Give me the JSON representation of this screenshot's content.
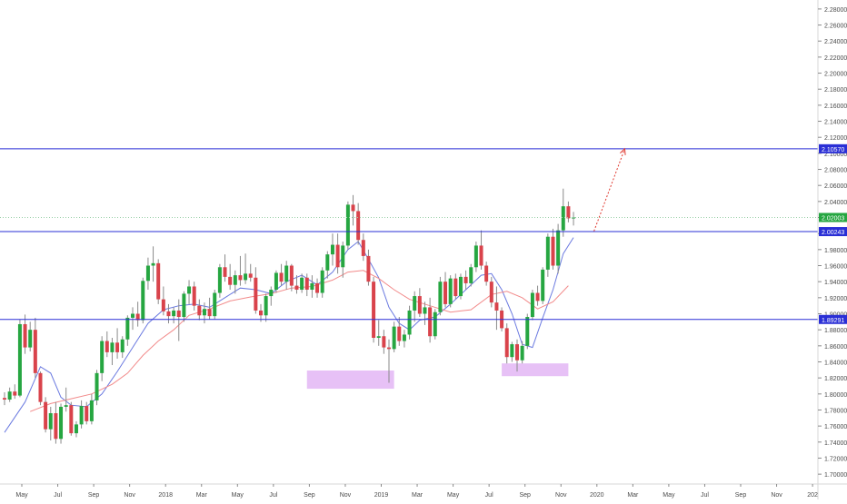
{
  "chart_data": {
    "type": "candlestick",
    "title": "",
    "xlabel": "",
    "ylabel": "",
    "ylim": [
      1.6877,
      2.2912
    ],
    "y_ticks": [
      "1.70000",
      "1.72000",
      "1.74000",
      "1.76000",
      "1.78000",
      "1.80000",
      "1.82000",
      "1.84000",
      "1.86000",
      "1.88000",
      "1.90000",
      "1.92000",
      "1.94000",
      "1.96000",
      "1.98000",
      "2.00000",
      "2.02000",
      "2.04000",
      "2.06000",
      "2.08000",
      "2.10000",
      "2.12000",
      "2.14000",
      "2.16000",
      "2.18000",
      "2.20000",
      "2.22000",
      "2.24000",
      "2.26000",
      "2.28000"
    ],
    "x_ticks": [
      "May",
      "Jul",
      "Sep",
      "Nov",
      "2018",
      "Mar",
      "May",
      "Jul",
      "Sep",
      "Nov",
      "2019",
      "Mar",
      "May",
      "Jul",
      "Sep",
      "Nov",
      "2020",
      "Mar",
      "May",
      "Jul",
      "Sep",
      "Nov",
      "202"
    ],
    "grid": false,
    "colors": {
      "up": "#26a641",
      "down": "#d9434b",
      "ma_fast": "#6b7ae0",
      "ma_slow": "#f28a8a",
      "level_line": "#2a2fd6",
      "price_tag": "#26a641",
      "zone": "#e3b6f5",
      "arrow": "#e0392f"
    },
    "horizontal_levels": [
      {
        "value": 2.1057,
        "label": "2.10570"
      },
      {
        "value": 2.00243,
        "label": "2.00243"
      },
      {
        "value": 1.89291,
        "label": "1.89291"
      }
    ],
    "last_price": {
      "value": 2.02003,
      "label": "2.02003"
    },
    "support_zones": [
      {
        "start_week": 59,
        "end_week": 76,
        "low": 1.8065,
        "high": 1.8292
      },
      {
        "start_week": 97,
        "end_week": 110,
        "low": 1.8222,
        "high": 1.8381
      }
    ],
    "projection_arrow": {
      "start_week": 115,
      "start_value": 2.003,
      "end_week": 121,
      "end_value": 2.1057
    },
    "candles": [
      {
        "week": 0,
        "o": 1.795,
        "h": 1.802,
        "l": 1.786,
        "c": 1.793
      },
      {
        "week": 1,
        "o": 1.793,
        "h": 1.808,
        "l": 1.79,
        "c": 1.803
      },
      {
        "week": 2,
        "o": 1.803,
        "h": 1.812,
        "l": 1.794,
        "c": 1.798
      },
      {
        "week": 3,
        "o": 1.798,
        "h": 1.893,
        "l": 1.796,
        "c": 1.887
      },
      {
        "week": 4,
        "o": 1.887,
        "h": 1.899,
        "l": 1.85,
        "c": 1.858
      },
      {
        "week": 5,
        "o": 1.858,
        "h": 1.89,
        "l": 1.853,
        "c": 1.88
      },
      {
        "week": 6,
        "o": 1.88,
        "h": 1.895,
        "l": 1.82,
        "c": 1.826
      },
      {
        "week": 7,
        "o": 1.826,
        "h": 1.828,
        "l": 1.786,
        "c": 1.79
      },
      {
        "week": 8,
        "o": 1.79,
        "h": 1.796,
        "l": 1.752,
        "c": 1.756
      },
      {
        "week": 9,
        "o": 1.756,
        "h": 1.784,
        "l": 1.742,
        "c": 1.776
      },
      {
        "week": 10,
        "o": 1.776,
        "h": 1.79,
        "l": 1.738,
        "c": 1.744
      },
      {
        "week": 11,
        "o": 1.744,
        "h": 1.788,
        "l": 1.738,
        "c": 1.784
      },
      {
        "week": 12,
        "o": 1.784,
        "h": 1.808,
        "l": 1.778,
        "c": 1.786
      },
      {
        "week": 13,
        "o": 1.786,
        "h": 1.79,
        "l": 1.748,
        "c": 1.751
      },
      {
        "week": 14,
        "o": 1.751,
        "h": 1.766,
        "l": 1.746,
        "c": 1.762
      },
      {
        "week": 15,
        "o": 1.762,
        "h": 1.792,
        "l": 1.757,
        "c": 1.785
      },
      {
        "week": 16,
        "o": 1.785,
        "h": 1.79,
        "l": 1.762,
        "c": 1.766
      },
      {
        "week": 17,
        "o": 1.766,
        "h": 1.8,
        "l": 1.762,
        "c": 1.792
      },
      {
        "week": 18,
        "o": 1.792,
        "h": 1.83,
        "l": 1.786,
        "c": 1.826
      },
      {
        "week": 19,
        "o": 1.826,
        "h": 1.872,
        "l": 1.816,
        "c": 1.866
      },
      {
        "week": 20,
        "o": 1.866,
        "h": 1.878,
        "l": 1.846,
        "c": 1.852
      },
      {
        "week": 21,
        "o": 1.852,
        "h": 1.87,
        "l": 1.836,
        "c": 1.864
      },
      {
        "week": 22,
        "o": 1.864,
        "h": 1.882,
        "l": 1.844,
        "c": 1.852
      },
      {
        "week": 23,
        "o": 1.852,
        "h": 1.872,
        "l": 1.845,
        "c": 1.868
      },
      {
        "week": 24,
        "o": 1.868,
        "h": 1.898,
        "l": 1.86,
        "c": 1.895
      },
      {
        "week": 25,
        "o": 1.895,
        "h": 1.908,
        "l": 1.88,
        "c": 1.9
      },
      {
        "week": 26,
        "o": 1.9,
        "h": 1.915,
        "l": 1.884,
        "c": 1.892
      },
      {
        "week": 27,
        "o": 1.892,
        "h": 1.945,
        "l": 1.888,
        "c": 1.941
      },
      {
        "week": 28,
        "o": 1.941,
        "h": 1.97,
        "l": 1.93,
        "c": 1.96
      },
      {
        "week": 29,
        "o": 1.96,
        "h": 1.984,
        "l": 1.94,
        "c": 1.963
      },
      {
        "week": 30,
        "o": 1.963,
        "h": 1.968,
        "l": 1.912,
        "c": 1.918
      },
      {
        "week": 31,
        "o": 1.918,
        "h": 1.934,
        "l": 1.898,
        "c": 1.903
      },
      {
        "week": 32,
        "o": 1.903,
        "h": 1.912,
        "l": 1.888,
        "c": 1.897
      },
      {
        "week": 33,
        "o": 1.897,
        "h": 1.908,
        "l": 1.888,
        "c": 1.904
      },
      {
        "week": 34,
        "o": 1.904,
        "h": 1.918,
        "l": 1.866,
        "c": 1.896
      },
      {
        "week": 35,
        "o": 1.896,
        "h": 1.928,
        "l": 1.89,
        "c": 1.925
      },
      {
        "week": 36,
        "o": 1.925,
        "h": 1.942,
        "l": 1.912,
        "c": 1.934
      },
      {
        "week": 37,
        "o": 1.934,
        "h": 1.94,
        "l": 1.904,
        "c": 1.91
      },
      {
        "week": 38,
        "o": 1.91,
        "h": 1.918,
        "l": 1.892,
        "c": 1.898
      },
      {
        "week": 39,
        "o": 1.898,
        "h": 1.914,
        "l": 1.888,
        "c": 1.906
      },
      {
        "week": 40,
        "o": 1.906,
        "h": 1.92,
        "l": 1.893,
        "c": 1.897
      },
      {
        "week": 41,
        "o": 1.897,
        "h": 1.93,
        "l": 1.893,
        "c": 1.926
      },
      {
        "week": 42,
        "o": 1.926,
        "h": 1.962,
        "l": 1.92,
        "c": 1.958
      },
      {
        "week": 43,
        "o": 1.958,
        "h": 1.974,
        "l": 1.94,
        "c": 1.946
      },
      {
        "week": 44,
        "o": 1.946,
        "h": 1.962,
        "l": 1.93,
        "c": 1.936
      },
      {
        "week": 45,
        "o": 1.936,
        "h": 1.954,
        "l": 1.925,
        "c": 1.948
      },
      {
        "week": 46,
        "o": 1.948,
        "h": 1.972,
        "l": 1.935,
        "c": 1.942
      },
      {
        "week": 47,
        "o": 1.942,
        "h": 1.975,
        "l": 1.937,
        "c": 1.95
      },
      {
        "week": 48,
        "o": 1.95,
        "h": 1.962,
        "l": 1.94,
        "c": 1.945
      },
      {
        "week": 49,
        "o": 1.945,
        "h": 1.958,
        "l": 1.9,
        "c": 1.904
      },
      {
        "week": 50,
        "o": 1.904,
        "h": 1.912,
        "l": 1.89,
        "c": 1.898
      },
      {
        "week": 51,
        "o": 1.898,
        "h": 1.925,
        "l": 1.89,
        "c": 1.922
      },
      {
        "week": 52,
        "o": 1.922,
        "h": 1.934,
        "l": 1.91,
        "c": 1.93
      },
      {
        "week": 53,
        "o": 1.93,
        "h": 1.954,
        "l": 1.926,
        "c": 1.951
      },
      {
        "week": 54,
        "o": 1.951,
        "h": 1.962,
        "l": 1.935,
        "c": 1.94
      },
      {
        "week": 55,
        "o": 1.94,
        "h": 1.966,
        "l": 1.93,
        "c": 1.96
      },
      {
        "week": 56,
        "o": 1.96,
        "h": 1.962,
        "l": 1.928,
        "c": 1.935
      },
      {
        "week": 57,
        "o": 1.935,
        "h": 1.948,
        "l": 1.925,
        "c": 1.93
      },
      {
        "week": 58,
        "o": 1.93,
        "h": 1.95,
        "l": 1.926,
        "c": 1.945
      },
      {
        "week": 59,
        "o": 1.945,
        "h": 1.95,
        "l": 1.922,
        "c": 1.93
      },
      {
        "week": 60,
        "o": 1.93,
        "h": 1.948,
        "l": 1.92,
        "c": 1.938
      },
      {
        "week": 61,
        "o": 1.938,
        "h": 1.944,
        "l": 1.92,
        "c": 1.926
      },
      {
        "week": 62,
        "o": 1.926,
        "h": 1.958,
        "l": 1.92,
        "c": 1.954
      },
      {
        "week": 63,
        "o": 1.954,
        "h": 1.978,
        "l": 1.944,
        "c": 1.974
      },
      {
        "week": 64,
        "o": 1.974,
        "h": 2.0,
        "l": 1.96,
        "c": 1.986
      },
      {
        "week": 65,
        "o": 1.986,
        "h": 2.0,
        "l": 1.95,
        "c": 1.958
      },
      {
        "week": 66,
        "o": 1.958,
        "h": 1.99,
        "l": 1.945,
        "c": 1.985
      },
      {
        "week": 67,
        "o": 1.985,
        "h": 2.04,
        "l": 1.98,
        "c": 2.036
      },
      {
        "week": 68,
        "o": 2.036,
        "h": 2.048,
        "l": 2.01,
        "c": 2.028
      },
      {
        "week": 69,
        "o": 2.028,
        "h": 2.038,
        "l": 1.986,
        "c": 1.992
      },
      {
        "week": 70,
        "o": 1.992,
        "h": 2.0,
        "l": 1.966,
        "c": 1.972
      },
      {
        "week": 71,
        "o": 1.972,
        "h": 1.98,
        "l": 1.935,
        "c": 1.94
      },
      {
        "week": 72,
        "o": 1.94,
        "h": 1.946,
        "l": 1.864,
        "c": 1.87
      },
      {
        "week": 73,
        "o": 1.87,
        "h": 1.892,
        "l": 1.86,
        "c": 1.872
      },
      {
        "week": 74,
        "o": 1.872,
        "h": 1.88,
        "l": 1.85,
        "c": 1.858
      },
      {
        "week": 75,
        "o": 1.858,
        "h": 1.868,
        "l": 1.814,
        "c": 1.856
      },
      {
        "week": 76,
        "o": 1.856,
        "h": 1.89,
        "l": 1.852,
        "c": 1.884
      },
      {
        "week": 77,
        "o": 1.884,
        "h": 1.896,
        "l": 1.86,
        "c": 1.866
      },
      {
        "week": 78,
        "o": 1.866,
        "h": 1.88,
        "l": 1.858,
        "c": 1.874
      },
      {
        "week": 79,
        "o": 1.874,
        "h": 1.91,
        "l": 1.868,
        "c": 1.904
      },
      {
        "week": 80,
        "o": 1.904,
        "h": 1.928,
        "l": 1.89,
        "c": 1.922
      },
      {
        "week": 81,
        "o": 1.922,
        "h": 1.932,
        "l": 1.896,
        "c": 1.9
      },
      {
        "week": 82,
        "o": 1.9,
        "h": 1.915,
        "l": 1.886,
        "c": 1.908
      },
      {
        "week": 83,
        "o": 1.908,
        "h": 1.92,
        "l": 1.864,
        "c": 1.872
      },
      {
        "week": 84,
        "o": 1.872,
        "h": 1.906,
        "l": 1.868,
        "c": 1.902
      },
      {
        "week": 85,
        "o": 1.902,
        "h": 1.946,
        "l": 1.898,
        "c": 1.94
      },
      {
        "week": 86,
        "o": 1.94,
        "h": 1.952,
        "l": 1.908,
        "c": 1.912
      },
      {
        "week": 87,
        "o": 1.912,
        "h": 1.948,
        "l": 1.908,
        "c": 1.944
      },
      {
        "week": 88,
        "o": 1.944,
        "h": 1.95,
        "l": 1.918,
        "c": 1.922
      },
      {
        "week": 89,
        "o": 1.922,
        "h": 1.95,
        "l": 1.918,
        "c": 1.946
      },
      {
        "week": 90,
        "o": 1.946,
        "h": 1.954,
        "l": 1.93,
        "c": 1.938
      },
      {
        "week": 91,
        "o": 1.938,
        "h": 1.962,
        "l": 1.934,
        "c": 1.958
      },
      {
        "week": 92,
        "o": 1.958,
        "h": 1.99,
        "l": 1.952,
        "c": 1.985
      },
      {
        "week": 93,
        "o": 1.985,
        "h": 2.004,
        "l": 1.955,
        "c": 1.96
      },
      {
        "week": 94,
        "o": 1.96,
        "h": 1.965,
        "l": 1.935,
        "c": 1.94
      },
      {
        "week": 95,
        "o": 1.94,
        "h": 1.946,
        "l": 1.908,
        "c": 1.914
      },
      {
        "week": 96,
        "o": 1.914,
        "h": 1.934,
        "l": 1.88,
        "c": 1.904
      },
      {
        "week": 97,
        "o": 1.904,
        "h": 1.908,
        "l": 1.878,
        "c": 1.882
      },
      {
        "week": 98,
        "o": 1.882,
        "h": 1.888,
        "l": 1.838,
        "c": 1.846
      },
      {
        "week": 99,
        "o": 1.846,
        "h": 1.865,
        "l": 1.84,
        "c": 1.862
      },
      {
        "week": 100,
        "o": 1.862,
        "h": 1.868,
        "l": 1.828,
        "c": 1.842
      },
      {
        "week": 101,
        "o": 1.842,
        "h": 1.866,
        "l": 1.838,
        "c": 1.86
      },
      {
        "week": 102,
        "o": 1.86,
        "h": 1.9,
        "l": 1.856,
        "c": 1.896
      },
      {
        "week": 103,
        "o": 1.896,
        "h": 1.93,
        "l": 1.892,
        "c": 1.926
      },
      {
        "week": 104,
        "o": 1.926,
        "h": 1.935,
        "l": 1.91,
        "c": 1.916
      },
      {
        "week": 105,
        "o": 1.916,
        "h": 1.958,
        "l": 1.912,
        "c": 1.955
      },
      {
        "week": 106,
        "o": 1.955,
        "h": 2.0,
        "l": 1.946,
        "c": 1.996
      },
      {
        "week": 107,
        "o": 1.996,
        "h": 2.006,
        "l": 1.955,
        "c": 1.96
      },
      {
        "week": 108,
        "o": 1.96,
        "h": 2.012,
        "l": 1.95,
        "c": 2.004
      },
      {
        "week": 109,
        "o": 2.004,
        "h": 2.056,
        "l": 1.996,
        "c": 2.034
      },
      {
        "week": 110,
        "o": 2.034,
        "h": 2.04,
        "l": 2.014,
        "c": 2.019
      },
      {
        "week": 111,
        "o": 2.019,
        "h": 2.027,
        "l": 2.01,
        "c": 2.02
      }
    ],
    "series": [
      {
        "name": "",
        "kind": "ma_fast",
        "points": [
          [
            0,
            1.752
          ],
          [
            4,
            1.79
          ],
          [
            7,
            1.834
          ],
          [
            9,
            1.826
          ],
          [
            11,
            1.796
          ],
          [
            13,
            1.786
          ],
          [
            16,
            1.784
          ],
          [
            19,
            1.8
          ],
          [
            22,
            1.828
          ],
          [
            25,
            1.858
          ],
          [
            28,
            1.888
          ],
          [
            31,
            1.905
          ],
          [
            34,
            1.91
          ],
          [
            37,
            1.912
          ],
          [
            40,
            1.908
          ],
          [
            43,
            1.92
          ],
          [
            46,
            1.932
          ],
          [
            49,
            1.93
          ],
          [
            52,
            1.925
          ],
          [
            55,
            1.94
          ],
          [
            58,
            1.948
          ],
          [
            61,
            1.936
          ],
          [
            64,
            1.952
          ],
          [
            67,
            1.98
          ],
          [
            69,
            1.99
          ],
          [
            71,
            1.968
          ],
          [
            73,
            1.945
          ],
          [
            75,
            1.908
          ],
          [
            77,
            1.888
          ],
          [
            79,
            1.88
          ],
          [
            81,
            1.892
          ],
          [
            84,
            1.896
          ],
          [
            87,
            1.912
          ],
          [
            90,
            1.93
          ],
          [
            93,
            1.948
          ],
          [
            95,
            1.95
          ],
          [
            97,
            1.93
          ],
          [
            99,
            1.9
          ],
          [
            101,
            1.862
          ],
          [
            103,
            1.858
          ],
          [
            105,
            1.895
          ],
          [
            107,
            1.93
          ],
          [
            109,
            1.975
          ],
          [
            111,
            1.995
          ]
        ]
      },
      {
        "name": "",
        "kind": "ma_slow",
        "points": [
          [
            5,
            1.778
          ],
          [
            9,
            1.788
          ],
          [
            13,
            1.794
          ],
          [
            17,
            1.8
          ],
          [
            21,
            1.812
          ],
          [
            24,
            1.826
          ],
          [
            27,
            1.848
          ],
          [
            30,
            1.866
          ],
          [
            33,
            1.88
          ],
          [
            36,
            1.898
          ],
          [
            40,
            1.906
          ],
          [
            44,
            1.916
          ],
          [
            48,
            1.921
          ],
          [
            52,
            1.925
          ],
          [
            56,
            1.932
          ],
          [
            60,
            1.934
          ],
          [
            64,
            1.942
          ],
          [
            67,
            1.952
          ],
          [
            70,
            1.954
          ],
          [
            73,
            1.944
          ],
          [
            76,
            1.93
          ],
          [
            79,
            1.918
          ],
          [
            83,
            1.91
          ],
          [
            87,
            1.902
          ],
          [
            91,
            1.905
          ],
          [
            95,
            1.924
          ],
          [
            98,
            1.928
          ],
          [
            101,
            1.92
          ],
          [
            104,
            1.906
          ],
          [
            107,
            1.915
          ],
          [
            110,
            1.935
          ]
        ]
      }
    ]
  }
}
